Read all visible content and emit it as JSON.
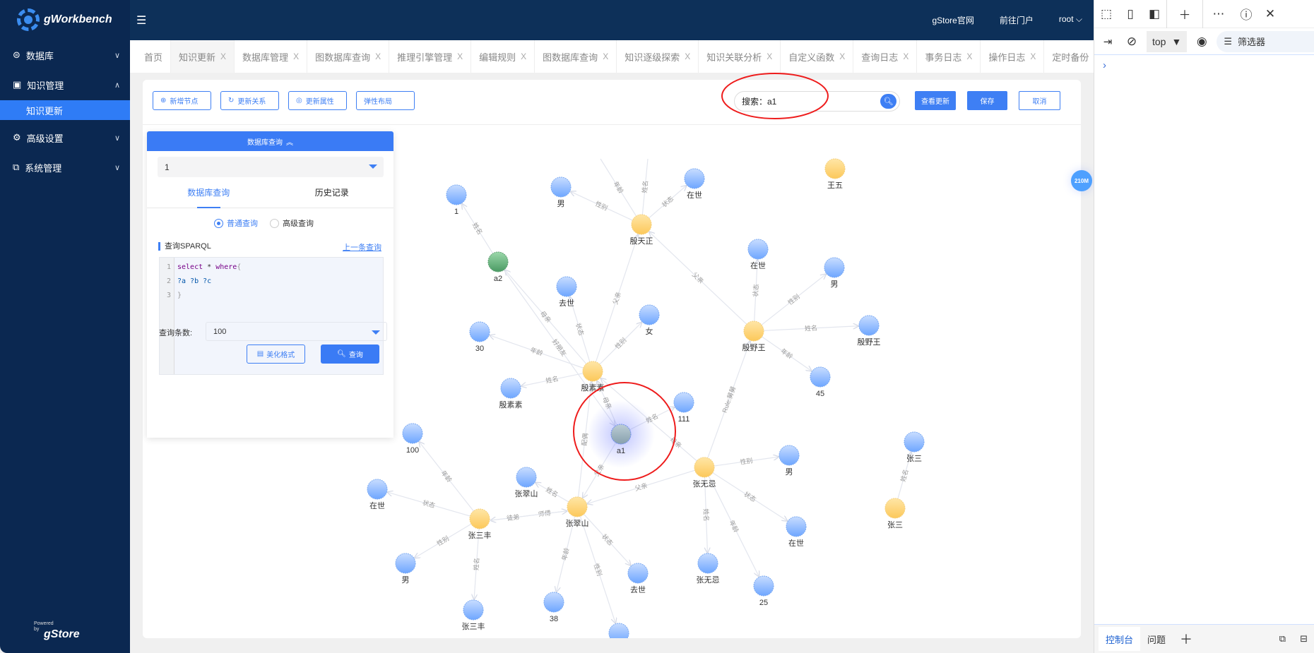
{
  "app": {
    "name": "gWorkbench",
    "powered_by": "Powered by",
    "powered_brand": "gStore"
  },
  "header": {
    "links": [
      "gStore官网",
      "前往门户"
    ],
    "user": "root"
  },
  "sidebar": {
    "items": [
      {
        "label": "数据库",
        "icon": "database-icon",
        "expanded": false
      },
      {
        "label": "知识管理",
        "icon": "knowledge-icon",
        "expanded": true
      },
      {
        "label": "知识更新",
        "sub": true,
        "active": true
      },
      {
        "label": "高级设置",
        "icon": "gear-icon",
        "expanded": false
      },
      {
        "label": "系统管理",
        "icon": "system-icon",
        "expanded": false
      }
    ]
  },
  "tabs": [
    {
      "label": "首页",
      "closable": false
    },
    {
      "label": "知识更新",
      "closable": true,
      "active": true
    },
    {
      "label": "数据库管理",
      "closable": true
    },
    {
      "label": "图数据库查询",
      "closable": true
    },
    {
      "label": "推理引擎管理",
      "closable": true
    },
    {
      "label": "编辑规则",
      "closable": true
    },
    {
      "label": "图数据库查询",
      "closable": true
    },
    {
      "label": "知识逐级探索",
      "closable": true
    },
    {
      "label": "知识关联分析",
      "closable": true
    },
    {
      "label": "自定义函数",
      "closable": true
    },
    {
      "label": "查询日志",
      "closable": true
    },
    {
      "label": "事务日志",
      "closable": true
    },
    {
      "label": "操作日志",
      "closable": true
    },
    {
      "label": "定时备份",
      "closable": true
    }
  ],
  "tab_close": "X",
  "toolbar": {
    "add_node": "新增节点",
    "update_relation": "更新关系",
    "update_attr": "更新属性",
    "force_layout": "弹性布局",
    "search_value": "搜索：a1",
    "view_updates": "查看更新",
    "save": "保存",
    "cancel": "取消"
  },
  "query_panel": {
    "title": "数据库查询",
    "database": "1",
    "tabs": [
      "数据库查询",
      "历史记录"
    ],
    "modes": [
      "普通查询",
      "高级查询"
    ],
    "selected_mode": "普通查询",
    "sparql_label": "查询SPARQL",
    "prev_query": "上一条查询",
    "code": [
      [
        {
          "t": "select",
          "c": "#770088"
        },
        {
          "t": " * ",
          "c": "#333"
        },
        {
          "t": "where",
          "c": "#770088"
        },
        {
          "t": "{",
          "c": "#999"
        }
      ],
      [
        {
          "t": "?a ?b ?c",
          "c": "#0055aa"
        }
      ],
      [
        {
          "t": "}",
          "c": "#999"
        }
      ]
    ],
    "line_numbers": [
      "1",
      "2",
      "3"
    ],
    "count_label": "查询条数:",
    "count_value": "100",
    "beautify": "美化格式",
    "query": "查询"
  },
  "memory_badge": "210M",
  "graph": {
    "colors": {
      "entity": "#fcc85a",
      "literal": "#6ea6ff",
      "other": "#4a9a63",
      "selected": "#8aa3b0",
      "edge": "#e3e6ee",
      "highlight": "#ee1c1c"
    },
    "nodes": [
      {
        "id": "n1",
        "label": "1",
        "kind": "literal"
      },
      {
        "id": "man1",
        "label": "男",
        "kind": "literal"
      },
      {
        "id": "alive1",
        "label": "在世",
        "kind": "literal"
      },
      {
        "id": "ytz",
        "label": "殷天正",
        "kind": "entity"
      },
      {
        "id": "a2",
        "label": "a2",
        "kind": "other"
      },
      {
        "id": "dead1",
        "label": "去世",
        "kind": "literal"
      },
      {
        "id": "female",
        "label": "女",
        "kind": "literal"
      },
      {
        "id": "n30",
        "label": "30",
        "kind": "literal"
      },
      {
        "id": "yss",
        "label": "殷素素",
        "kind": "entity"
      },
      {
        "id": "yssName",
        "label": "殷素素",
        "kind": "literal"
      },
      {
        "id": "n111",
        "label": "111",
        "kind": "literal"
      },
      {
        "id": "a1",
        "label": "a1",
        "kind": "selected"
      },
      {
        "id": "n100",
        "label": "100",
        "kind": "literal"
      },
      {
        "id": "alive2",
        "label": "在世",
        "kind": "literal"
      },
      {
        "id": "zcsName",
        "label": "张翠山",
        "kind": "literal"
      },
      {
        "id": "zcs",
        "label": "张翠山",
        "kind": "entity"
      },
      {
        "id": "zsf",
        "label": "张三丰",
        "kind": "entity"
      },
      {
        "id": "man2",
        "label": "男",
        "kind": "literal"
      },
      {
        "id": "zsfName",
        "label": "张三丰",
        "kind": "literal"
      },
      {
        "id": "n38",
        "label": "38",
        "kind": "literal"
      },
      {
        "id": "dead2",
        "label": "去世",
        "kind": "literal"
      },
      {
        "id": "bottom",
        "label": "",
        "kind": "literal"
      },
      {
        "id": "zwj",
        "label": "张无忌",
        "kind": "entity"
      },
      {
        "id": "man3",
        "label": "男",
        "kind": "literal"
      },
      {
        "id": "alive3",
        "label": "在世",
        "kind": "literal"
      },
      {
        "id": "zwjName",
        "label": "张无忌",
        "kind": "literal"
      },
      {
        "id": "n25",
        "label": "25",
        "kind": "literal"
      },
      {
        "id": "zsName",
        "label": "张三",
        "kind": "literal"
      },
      {
        "id": "zs",
        "label": "张三",
        "kind": "entity"
      },
      {
        "id": "n45",
        "label": "45",
        "kind": "literal"
      },
      {
        "id": "wangwu",
        "label": "王五",
        "kind": "entity"
      },
      {
        "id": "alive4",
        "label": "在世",
        "kind": "literal"
      },
      {
        "id": "man4",
        "label": "男",
        "kind": "literal"
      },
      {
        "id": "yyw",
        "label": "殷野王",
        "kind": "entity"
      },
      {
        "id": "yywName",
        "label": "殷野王",
        "kind": "literal"
      }
    ],
    "edges": [
      {
        "from": "a2",
        "to": "n1",
        "label": "姓名"
      },
      {
        "from": "ytz",
        "to": "man1",
        "label": "性别"
      },
      {
        "from": "ytz",
        "to": "alive1",
        "label": "状态"
      },
      {
        "from": "ytz",
        "to": "off1",
        "label": "年龄"
      },
      {
        "from": "ytz",
        "to": "off2",
        "label": "姓名"
      },
      {
        "from": "yyw",
        "to": "ytz",
        "label": "父亲"
      },
      {
        "from": "yss",
        "to": "ytz",
        "label": "父亲"
      },
      {
        "from": "yss",
        "to": "a2",
        "label": "母亲"
      },
      {
        "from": "a2",
        "to": "a1",
        "label": "好朋友"
      },
      {
        "from": "yss",
        "to": "n30",
        "label": "年龄"
      },
      {
        "from": "yss",
        "to": "dead1",
        "label": "状态"
      },
      {
        "from": "yss",
        "to": "female",
        "label": "性别"
      },
      {
        "from": "yss",
        "to": "yssName",
        "label": "姓名"
      },
      {
        "from": "yyw",
        "to": "alive4",
        "label": "状态"
      },
      {
        "from": "yyw",
        "to": "man4",
        "label": "性别"
      },
      {
        "from": "yyw",
        "to": "yywName",
        "label": "姓名"
      },
      {
        "from": "yyw",
        "to": "n45",
        "label": "年龄"
      },
      {
        "from": "zwj",
        "to": "yyw",
        "label": "Rule:舅舅"
      },
      {
        "from": "zwj",
        "to": "yss",
        "label": "母亲"
      },
      {
        "from": "zwj",
        "to": "zcs",
        "label": "父亲"
      },
      {
        "from": "zwj",
        "to": "man3",
        "label": "性别"
      },
      {
        "from": "zwj",
        "to": "alive3",
        "label": "状态"
      },
      {
        "from": "zwj",
        "to": "zwjName",
        "label": "姓名"
      },
      {
        "from": "zwj",
        "to": "n25",
        "label": "年龄"
      },
      {
        "from": "a1",
        "to": "yss",
        "label": "母亲"
      },
      {
        "from": "a1",
        "to": "n111",
        "label": "姓名"
      },
      {
        "from": "a1",
        "to": "zcs",
        "label": "父亲"
      },
      {
        "from": "zcs",
        "to": "yss",
        "label": "配偶"
      },
      {
        "from": "zcs",
        "to": "zcsName",
        "label": "姓名"
      },
      {
        "from": "zcs",
        "to": "n38",
        "label": "年龄"
      },
      {
        "from": "zcs",
        "to": "dead2",
        "label": "状态"
      },
      {
        "from": "zcs",
        "to": "bottom",
        "label": "性别"
      },
      {
        "from": "zcs",
        "to": "zsf",
        "label": "师傅"
      },
      {
        "from": "zsf",
        "to": "zcs",
        "label": "徒弟"
      },
      {
        "from": "zsf",
        "to": "n100",
        "label": "年龄"
      },
      {
        "from": "zsf",
        "to": "alive2",
        "label": "状态"
      },
      {
        "from": "zsf",
        "to": "man2",
        "label": "性别"
      },
      {
        "from": "zsf",
        "to": "zsfName",
        "label": "姓名"
      },
      {
        "from": "zs",
        "to": "zsName",
        "label": "姓名"
      }
    ]
  },
  "devtools": {
    "context": "top",
    "filter": "筛选器",
    "bottom_tabs": [
      "控制台",
      "问题"
    ]
  }
}
